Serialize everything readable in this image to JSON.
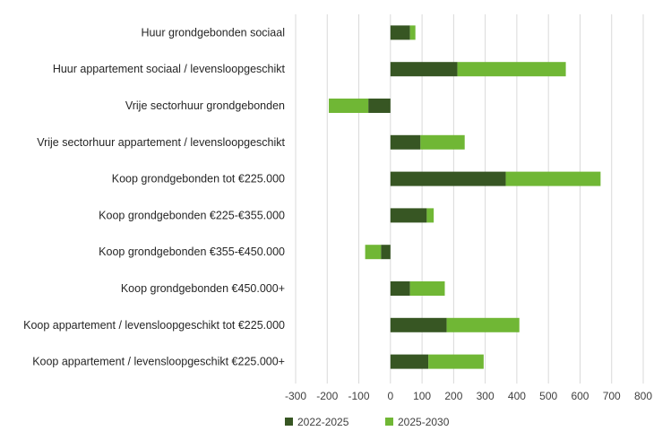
{
  "chart_data": {
    "type": "bar",
    "orientation": "horizontal",
    "stacked": true,
    "categories": [
      "Huur grondgebonden sociaal",
      "Huur appartement sociaal / levensloopgeschikt",
      "Vrije sectorhuur grondgebonden",
      "Vrije sectorhuur appartement / levensloopgeschikt",
      "Koop grondgebonden tot €225.000",
      "Koop grondgebonden €225-€355.000",
      "Koop grondgebonden €355-€450.000",
      "Koop grondgebonden €450.000+",
      "Koop appartement / levensloopgeschikt tot €225.000",
      "Koop appartement / levensloopgeschikt €225.000+"
    ],
    "series": [
      {
        "name": "2022-2025",
        "color": "#375623",
        "values": [
          62,
          212,
          -70,
          95,
          365,
          115,
          -30,
          62,
          178,
          120
        ]
      },
      {
        "name": "2025-2030",
        "color": "#70b735",
        "values": [
          17,
          343,
          -125,
          140,
          300,
          22,
          -50,
          110,
          230,
          175
        ]
      }
    ],
    "xlim": [
      -300,
      800
    ],
    "xticks": [
      "-300",
      "-200",
      "-100",
      "0",
      "100",
      "200",
      "300",
      "400",
      "500",
      "600",
      "700",
      "800"
    ],
    "grid": "vertical",
    "legend_position": "bottom",
    "title": "",
    "xlabel": "",
    "ylabel": ""
  }
}
